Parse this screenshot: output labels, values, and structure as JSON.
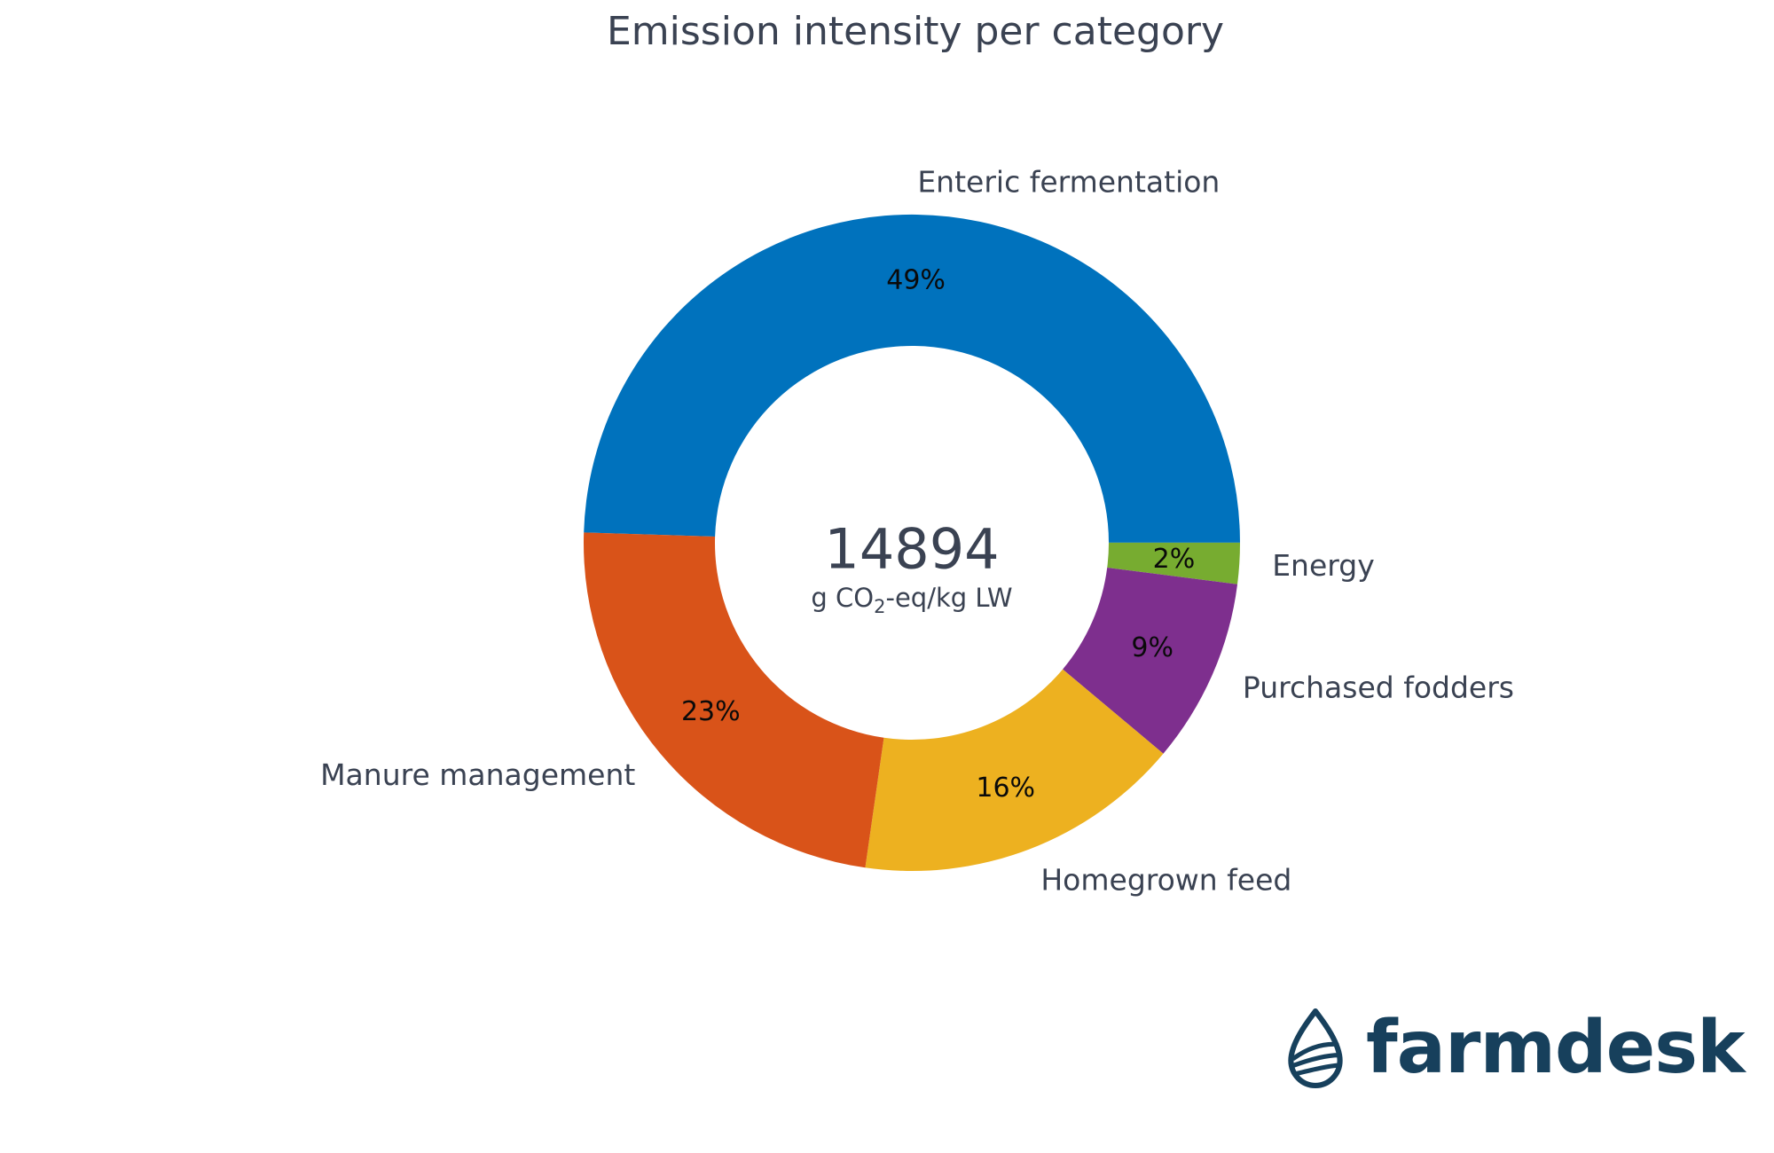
{
  "title": "Emission intensity per category",
  "chart_data": {
    "type": "pie",
    "variant": "donut",
    "title": "Emission intensity per category",
    "categories": [
      "Enteric fermentation",
      "Energy",
      "Purchased fodders",
      "Homegrown feed",
      "Manure management"
    ],
    "values": [
      49,
      2,
      9,
      16,
      23
    ],
    "percent_labels": [
      "49%",
      "2%",
      "9%",
      "16%",
      "23%"
    ],
    "colors": [
      "#0072BD",
      "#77AC30",
      "#7E2F8E",
      "#EDB120",
      "#D95319"
    ],
    "start_angle_deg": 178.2,
    "direction": "clockwise",
    "hole_ratio": 0.6,
    "legend": "none",
    "center_label": {
      "value": "14894",
      "unit_prefix": "g CO",
      "unit_sub": "2",
      "unit_suffix": "-eq/kg LW"
    }
  },
  "logo": {
    "brand": "farmdesk",
    "icon": "water-drop-crop-rows-icon",
    "color": "#17405C"
  },
  "style": {
    "background": "#FFFFFF",
    "label_color": "#3A4252",
    "pct_color": "#0A0A0A"
  }
}
